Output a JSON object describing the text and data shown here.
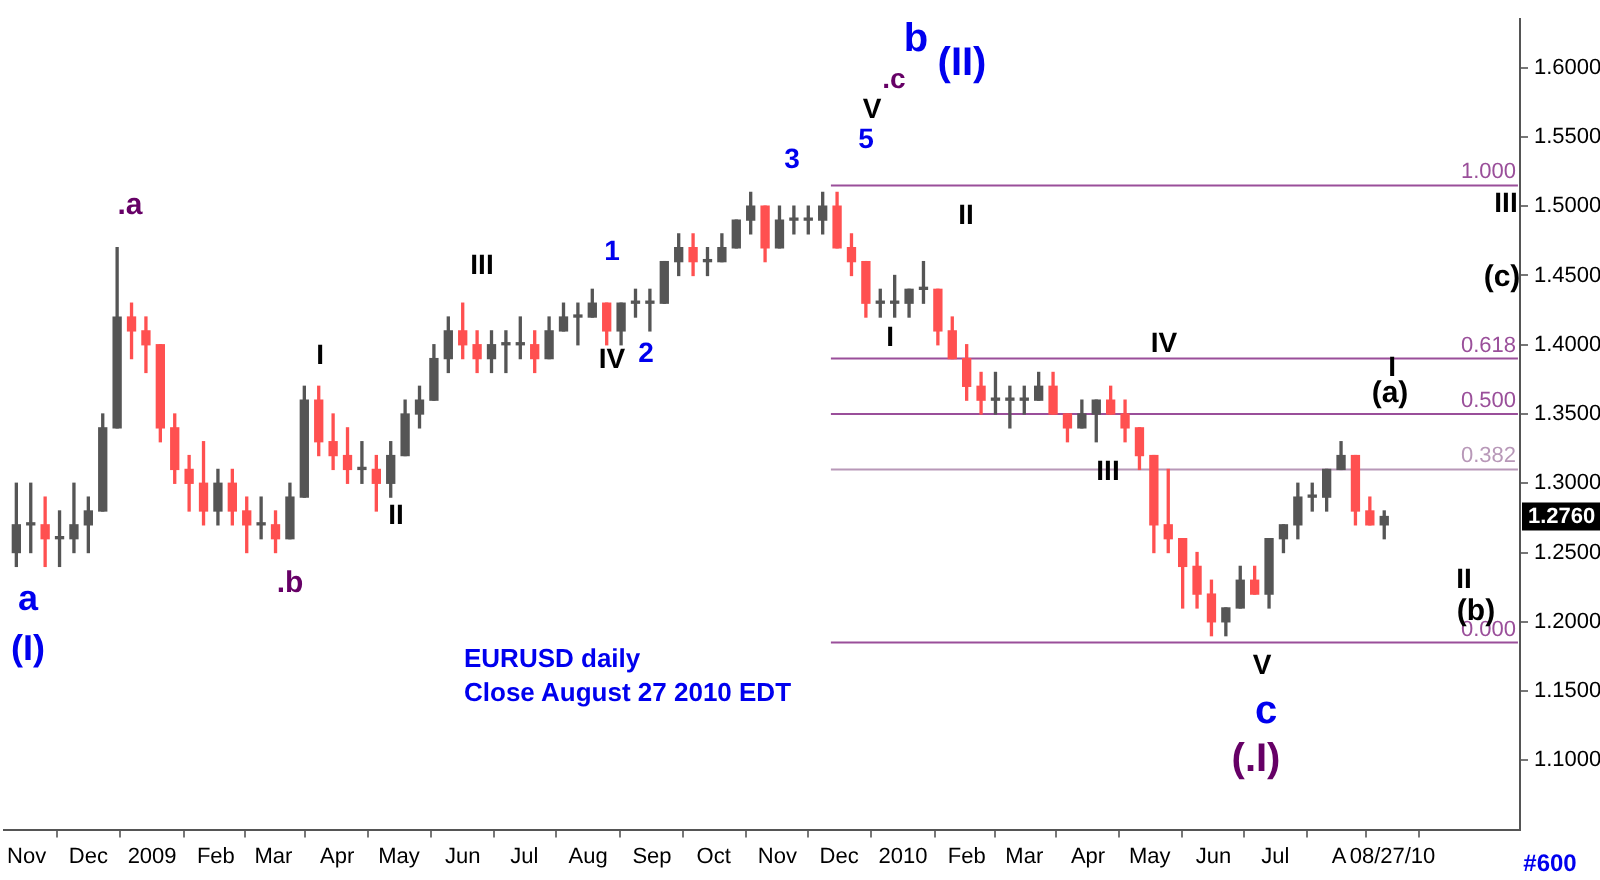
{
  "chart_data": {
    "type": "candlestick",
    "x": [
      "2008-10-27",
      "2008-11-03",
      "2008-11-10",
      "2008-11-17",
      "2008-11-24",
      "2008-12-01",
      "2008-12-08",
      "2008-12-15",
      "2008-12-22",
      "2008-12-29",
      "2009-01-05",
      "2009-01-12",
      "2009-01-19",
      "2009-01-26",
      "2009-02-02",
      "2009-02-09",
      "2009-02-16",
      "2009-02-23",
      "2009-03-02",
      "2009-03-09",
      "2009-03-16",
      "2009-03-23",
      "2009-03-30",
      "2009-04-06",
      "2009-04-13",
      "2009-04-20",
      "2009-04-27",
      "2009-05-04",
      "2009-05-11",
      "2009-05-18",
      "2009-05-25",
      "2009-06-01",
      "2009-06-08",
      "2009-06-15",
      "2009-06-22",
      "2009-06-29",
      "2009-07-06",
      "2009-07-13",
      "2009-07-20",
      "2009-07-27",
      "2009-08-03",
      "2009-08-10",
      "2009-08-17",
      "2009-08-24",
      "2009-08-31",
      "2009-09-07",
      "2009-09-14",
      "2009-09-21",
      "2009-09-28",
      "2009-10-05",
      "2009-10-12",
      "2009-10-19",
      "2009-10-26",
      "2009-11-02",
      "2009-11-09",
      "2009-11-16",
      "2009-11-23",
      "2009-11-30",
      "2009-12-07",
      "2009-12-14",
      "2009-12-21",
      "2009-12-28",
      "2010-01-04",
      "2010-01-11",
      "2010-01-18",
      "2010-01-25",
      "2010-02-01",
      "2010-02-08",
      "2010-02-15",
      "2010-02-22",
      "2010-03-01",
      "2010-03-08",
      "2010-03-15",
      "2010-03-22",
      "2010-03-29",
      "2010-04-05",
      "2010-04-12",
      "2010-04-19",
      "2010-04-26",
      "2010-05-03",
      "2010-05-10",
      "2010-05-17",
      "2010-05-24",
      "2010-05-31",
      "2010-06-07",
      "2010-06-14",
      "2010-06-21",
      "2010-06-28",
      "2010-07-05",
      "2010-07-12",
      "2010-07-19",
      "2010-07-26",
      "2010-08-02",
      "2010-08-09",
      "2010-08-16",
      "2010-08-23"
    ],
    "ohlc": [
      [
        1.25,
        1.3,
        1.24,
        1.27
      ],
      [
        1.27,
        1.3,
        1.25,
        1.27
      ],
      [
        1.27,
        1.29,
        1.24,
        1.26
      ],
      [
        1.26,
        1.28,
        1.24,
        1.26
      ],
      [
        1.26,
        1.3,
        1.25,
        1.27
      ],
      [
        1.27,
        1.29,
        1.25,
        1.28
      ],
      [
        1.28,
        1.35,
        1.28,
        1.34
      ],
      [
        1.34,
        1.47,
        1.34,
        1.42
      ],
      [
        1.42,
        1.43,
        1.39,
        1.41
      ],
      [
        1.41,
        1.42,
        1.38,
        1.4
      ],
      [
        1.4,
        1.4,
        1.33,
        1.34
      ],
      [
        1.34,
        1.35,
        1.3,
        1.31
      ],
      [
        1.31,
        1.32,
        1.28,
        1.3
      ],
      [
        1.3,
        1.33,
        1.27,
        1.28
      ],
      [
        1.28,
        1.31,
        1.27,
        1.3
      ],
      [
        1.3,
        1.31,
        1.27,
        1.28
      ],
      [
        1.28,
        1.29,
        1.25,
        1.27
      ],
      [
        1.27,
        1.29,
        1.26,
        1.27
      ],
      [
        1.27,
        1.28,
        1.25,
        1.26
      ],
      [
        1.26,
        1.3,
        1.26,
        1.29
      ],
      [
        1.29,
        1.37,
        1.29,
        1.36
      ],
      [
        1.36,
        1.37,
        1.32,
        1.33
      ],
      [
        1.33,
        1.35,
        1.31,
        1.32
      ],
      [
        1.32,
        1.34,
        1.3,
        1.31
      ],
      [
        1.31,
        1.33,
        1.3,
        1.31
      ],
      [
        1.31,
        1.32,
        1.28,
        1.3
      ],
      [
        1.3,
        1.33,
        1.29,
        1.32
      ],
      [
        1.32,
        1.36,
        1.32,
        1.35
      ],
      [
        1.35,
        1.37,
        1.34,
        1.36
      ],
      [
        1.36,
        1.4,
        1.36,
        1.39
      ],
      [
        1.39,
        1.42,
        1.38,
        1.41
      ],
      [
        1.41,
        1.43,
        1.39,
        1.4
      ],
      [
        1.4,
        1.41,
        1.38,
        1.39
      ],
      [
        1.39,
        1.41,
        1.38,
        1.4
      ],
      [
        1.4,
        1.41,
        1.38,
        1.4
      ],
      [
        1.4,
        1.42,
        1.39,
        1.4
      ],
      [
        1.4,
        1.41,
        1.38,
        1.39
      ],
      [
        1.39,
        1.42,
        1.39,
        1.41
      ],
      [
        1.41,
        1.43,
        1.41,
        1.42
      ],
      [
        1.42,
        1.43,
        1.4,
        1.42
      ],
      [
        1.42,
        1.44,
        1.42,
        1.43
      ],
      [
        1.43,
        1.43,
        1.4,
        1.41
      ],
      [
        1.41,
        1.43,
        1.4,
        1.43
      ],
      [
        1.43,
        1.44,
        1.42,
        1.43
      ],
      [
        1.43,
        1.44,
        1.41,
        1.43
      ],
      [
        1.43,
        1.46,
        1.43,
        1.46
      ],
      [
        1.46,
        1.48,
        1.45,
        1.47
      ],
      [
        1.47,
        1.48,
        1.45,
        1.46
      ],
      [
        1.46,
        1.47,
        1.45,
        1.46
      ],
      [
        1.46,
        1.48,
        1.46,
        1.47
      ],
      [
        1.47,
        1.49,
        1.47,
        1.49
      ],
      [
        1.49,
        1.51,
        1.48,
        1.5
      ],
      [
        1.5,
        1.5,
        1.46,
        1.47
      ],
      [
        1.47,
        1.5,
        1.47,
        1.49
      ],
      [
        1.49,
        1.5,
        1.48,
        1.49
      ],
      [
        1.49,
        1.5,
        1.48,
        1.49
      ],
      [
        1.49,
        1.51,
        1.48,
        1.5
      ],
      [
        1.5,
        1.51,
        1.47,
        1.47
      ],
      [
        1.47,
        1.48,
        1.45,
        1.46
      ],
      [
        1.46,
        1.46,
        1.42,
        1.43
      ],
      [
        1.43,
        1.44,
        1.42,
        1.43
      ],
      [
        1.43,
        1.45,
        1.42,
        1.43
      ],
      [
        1.43,
        1.44,
        1.42,
        1.44
      ],
      [
        1.44,
        1.46,
        1.43,
        1.44
      ],
      [
        1.44,
        1.44,
        1.4,
        1.41
      ],
      [
        1.41,
        1.42,
        1.39,
        1.39
      ],
      [
        1.39,
        1.4,
        1.36,
        1.37
      ],
      [
        1.37,
        1.38,
        1.35,
        1.36
      ],
      [
        1.36,
        1.38,
        1.35,
        1.36
      ],
      [
        1.36,
        1.37,
        1.34,
        1.36
      ],
      [
        1.36,
        1.37,
        1.35,
        1.36
      ],
      [
        1.36,
        1.38,
        1.36,
        1.37
      ],
      [
        1.37,
        1.38,
        1.35,
        1.35
      ],
      [
        1.35,
        1.35,
        1.33,
        1.34
      ],
      [
        1.34,
        1.36,
        1.34,
        1.35
      ],
      [
        1.35,
        1.36,
        1.33,
        1.36
      ],
      [
        1.36,
        1.37,
        1.35,
        1.35
      ],
      [
        1.35,
        1.36,
        1.33,
        1.34
      ],
      [
        1.34,
        1.34,
        1.31,
        1.32
      ],
      [
        1.32,
        1.32,
        1.25,
        1.27
      ],
      [
        1.27,
        1.31,
        1.25,
        1.26
      ],
      [
        1.26,
        1.26,
        1.21,
        1.24
      ],
      [
        1.24,
        1.25,
        1.21,
        1.22
      ],
      [
        1.22,
        1.23,
        1.19,
        1.2
      ],
      [
        1.2,
        1.21,
        1.19,
        1.21
      ],
      [
        1.21,
        1.24,
        1.21,
        1.23
      ],
      [
        1.23,
        1.24,
        1.22,
        1.22
      ],
      [
        1.22,
        1.26,
        1.21,
        1.26
      ],
      [
        1.26,
        1.27,
        1.25,
        1.27
      ],
      [
        1.27,
        1.3,
        1.26,
        1.29
      ],
      [
        1.29,
        1.3,
        1.28,
        1.29
      ],
      [
        1.29,
        1.31,
        1.28,
        1.31
      ],
      [
        1.31,
        1.33,
        1.31,
        1.32
      ],
      [
        1.32,
        1.32,
        1.27,
        1.28
      ],
      [
        1.28,
        1.29,
        1.27,
        1.27
      ],
      [
        1.27,
        1.28,
        1.26,
        1.276
      ]
    ],
    "colors": [
      "#555555",
      "#555555",
      "#ff5050",
      "#555555",
      "#555555",
      "#555555",
      "#555555",
      "#555555",
      "#ff5050",
      "#ff5050",
      "#ff5050",
      "#ff5050",
      "#ff5050",
      "#ff5050",
      "#555555",
      "#ff5050",
      "#ff5050",
      "#555555",
      "#ff5050",
      "#555555",
      "#555555",
      "#ff5050",
      "#ff5050",
      "#ff5050",
      "#555555",
      "#ff5050",
      "#555555",
      "#555555",
      "#555555",
      "#555555",
      "#555555",
      "#ff5050",
      "#ff5050",
      "#555555",
      "#555555",
      "#555555",
      "#ff5050",
      "#555555",
      "#555555",
      "#555555",
      "#555555",
      "#ff5050",
      "#555555",
      "#555555",
      "#555555",
      "#555555",
      "#555555",
      "#ff5050",
      "#555555",
      "#555555",
      "#555555",
      "#555555",
      "#ff5050",
      "#555555",
      "#555555",
      "#555555",
      "#555555",
      "#ff5050",
      "#ff5050",
      "#ff5050",
      "#555555",
      "#555555",
      "#555555",
      "#555555",
      "#ff5050",
      "#ff5050",
      "#ff5050",
      "#ff5050",
      "#555555",
      "#555555",
      "#555555",
      "#555555",
      "#ff5050",
      "#ff5050",
      "#555555",
      "#555555",
      "#ff5050",
      "#ff5050",
      "#ff5050",
      "#ff5050",
      "#ff5050",
      "#ff5050",
      "#ff5050",
      "#ff5050",
      "#555555",
      "#555555",
      "#ff5050",
      "#555555",
      "#555555",
      "#555555",
      "#555555",
      "#555555",
      "#555555",
      "#ff5050",
      "#ff5050",
      "#555555"
    ],
    "series": [
      {
        "type": "line",
        "name": "1.000",
        "color": "#9a4f9a",
        "x": [
          "2009-11-27",
          "2010-10-27"
        ],
        "values": [
          1.515,
          1.515
        ]
      },
      {
        "type": "line",
        "name": "0.618",
        "color": "#9a4f9a",
        "x": [
          "2009-11-27",
          "2010-10-27"
        ],
        "values": [
          1.39,
          1.39
        ]
      },
      {
        "type": "line",
        "name": "0.500",
        "color": "#9a4f9a",
        "x": [
          "2009-11-27",
          "2010-10-27"
        ],
        "values": [
          1.35,
          1.35
        ]
      },
      {
        "type": "line",
        "name": "0.382",
        "color": "#b898b8",
        "x": [
          "2009-11-27",
          "2010-10-27"
        ],
        "values": [
          1.31,
          1.31
        ]
      },
      {
        "type": "line",
        "name": "0.000",
        "color": "#9a4f9a",
        "x": [
          "2009-11-27",
          "2010-10-27"
        ],
        "values": [
          1.185,
          1.185
        ]
      }
    ],
    "xlim": [
      "2008-10-21",
      "2010-10-28"
    ],
    "xticks": [
      {
        "value": "2008-11-01",
        "label": "Nov"
      },
      {
        "value": "2008-12-01",
        "label": "Dec"
      },
      {
        "value": "2009-01-01",
        "label": "2009"
      },
      {
        "value": "2009-02-01",
        "label": "Feb"
      },
      {
        "value": "2009-03-01",
        "label": "Mar"
      },
      {
        "value": "2009-04-01",
        "label": "Apr"
      },
      {
        "value": "2009-05-01",
        "label": "May"
      },
      {
        "value": "2009-06-01",
        "label": "Jun"
      },
      {
        "value": "2009-07-01",
        "label": "Jul"
      },
      {
        "value": "2009-08-01",
        "label": "Aug"
      },
      {
        "value": "2009-09-01",
        "label": "Sep"
      },
      {
        "value": "2009-10-01",
        "label": "Oct"
      },
      {
        "value": "2009-11-01",
        "label": "Nov"
      },
      {
        "value": "2009-12-01",
        "label": "Dec"
      },
      {
        "value": "2010-01-01",
        "label": "2010"
      },
      {
        "value": "2010-02-01",
        "label": "Feb"
      },
      {
        "value": "2010-03-01",
        "label": "Mar"
      },
      {
        "value": "2010-04-01",
        "label": "Apr"
      },
      {
        "value": "2010-05-01",
        "label": "May"
      },
      {
        "value": "2010-06-01",
        "label": "Jun"
      },
      {
        "value": "2010-07-01",
        "label": "Jul"
      },
      {
        "value": "2010-08-01",
        "label": "A"
      },
      {
        "value": "2010-08-27",
        "label": "08/27/10"
      }
    ],
    "ylim": [
      1.05,
      1.635
    ],
    "yticks": [
      {
        "value": 1.1,
        "label": "1.1000"
      },
      {
        "value": 1.15,
        "label": "1.1500"
      },
      {
        "value": 1.2,
        "label": "1.2000"
      },
      {
        "value": 1.25,
        "label": "1.2500"
      },
      {
        "value": 1.3,
        "label": "1.3000"
      },
      {
        "value": 1.35,
        "label": "1.3500"
      },
      {
        "value": 1.4,
        "label": "1.4000"
      },
      {
        "value": 1.45,
        "label": "1.4500"
      },
      {
        "value": 1.5,
        "label": "1.5000"
      },
      {
        "value": 1.55,
        "label": "1.5500"
      },
      {
        "value": 1.6,
        "label": "1.6000"
      }
    ],
    "legend": false,
    "annotations": [
      "a",
      "(I)",
      ".a",
      ".b",
      "I",
      "II",
      "III",
      "1",
      "IV",
      "2",
      "3",
      "5",
      "V",
      ".c",
      "b",
      "(II)",
      "I",
      "II",
      "III",
      "IV",
      "V",
      "c",
      "(.I)",
      "I",
      "(a)",
      "(b)",
      "II",
      "(c)",
      "III",
      {
        "text": "1.2760",
        "y": 1.276
      },
      "EURUSD daily",
      "Close August 27 2010 EDT",
      "#600"
    ]
  }
}
